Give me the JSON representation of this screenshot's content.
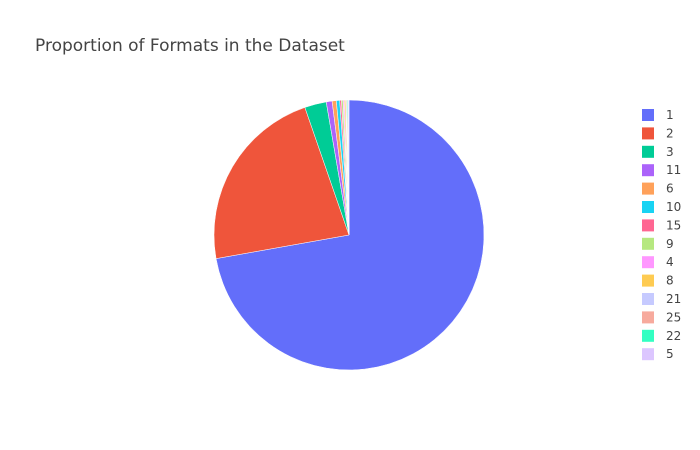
{
  "chart_data": {
    "type": "pie",
    "title": "Proportion of Formats in the Dataset",
    "direction": "clockwise",
    "start_angle_deg": 0,
    "legend": {
      "placement": "right"
    },
    "slices": [
      {
        "label": "1",
        "value": 72.2,
        "color": "#636efa"
      },
      {
        "label": "2",
        "value": 22.5,
        "color": "#ef553b"
      },
      {
        "label": "3",
        "value": 2.6,
        "color": "#00cc96"
      },
      {
        "label": "11",
        "value": 0.7,
        "color": "#ab63fa"
      },
      {
        "label": "6",
        "value": 0.5,
        "color": "#ffa15a"
      },
      {
        "label": "10",
        "value": 0.4,
        "color": "#19d3f3"
      },
      {
        "label": "15",
        "value": 0.2,
        "color": "#ff6692"
      },
      {
        "label": "9",
        "value": 0.2,
        "color": "#b6e880"
      },
      {
        "label": "4",
        "value": 0.15,
        "color": "#ff97ff"
      },
      {
        "label": "8",
        "value": 0.15,
        "color": "#fecb52"
      },
      {
        "label": "21",
        "value": 0.1,
        "color": "#c6caff"
      },
      {
        "label": "25",
        "value": 0.1,
        "color": "#f7aa9d"
      },
      {
        "label": "22",
        "value": 0.1,
        "color": "#33ffc2"
      },
      {
        "label": "5",
        "value": 0.1,
        "color": "#dcc6ff"
      }
    ]
  }
}
